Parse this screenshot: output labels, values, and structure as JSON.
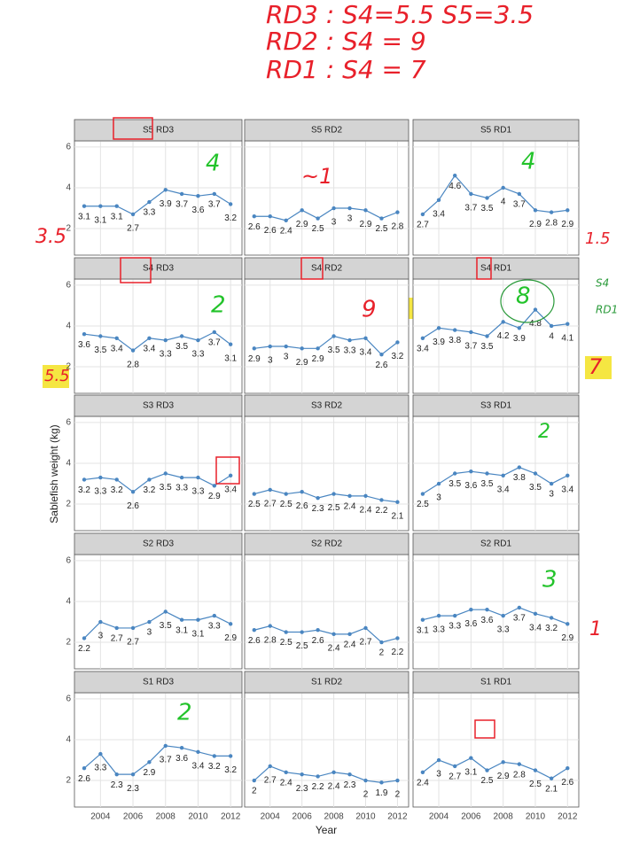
{
  "chart_data": [
    {
      "type": "line",
      "title": "S5 RD3",
      "x": [
        2003,
        2004,
        2005,
        2006,
        2007,
        2008,
        2009,
        2010,
        2011,
        2012
      ],
      "values": [
        3.1,
        3.1,
        3.1,
        2.7,
        3.3,
        3.9,
        3.7,
        3.6,
        3.7,
        3.2
      ],
      "color": "#4a86c1",
      "xlim": [
        2002.4,
        2012.7
      ],
      "ylim": [
        0.7,
        6.3
      ],
      "xticks": [
        2004,
        2006,
        2008,
        2010,
        2012
      ],
      "yticks": [
        2,
        4,
        6
      ]
    },
    {
      "type": "line",
      "title": "S5 RD2",
      "x": [
        2003,
        2004,
        2005,
        2006,
        2007,
        2008,
        2009,
        2010,
        2011,
        2012
      ],
      "values": [
        2.6,
        2.6,
        2.4,
        2.9,
        2.5,
        3,
        3,
        2.9,
        2.5,
        2.8
      ],
      "color": "#4a86c1",
      "xlim": [
        2002.4,
        2012.7
      ],
      "ylim": [
        0.7,
        6.3
      ],
      "xticks": [
        2004,
        2006,
        2008,
        2010,
        2012
      ],
      "yticks": [
        2,
        4,
        6
      ]
    },
    {
      "type": "line",
      "title": "S5 RD1",
      "x": [
        2003,
        2004,
        2005,
        2006,
        2007,
        2008,
        2009,
        2010,
        2011,
        2012
      ],
      "values": [
        2.7,
        3.4,
        4.6,
        3.7,
        3.5,
        4,
        3.7,
        2.9,
        2.8,
        2.9
      ],
      "color": "#4a86c1",
      "xlim": [
        2002.4,
        2012.7
      ],
      "ylim": [
        0.7,
        6.3
      ],
      "xticks": [
        2004,
        2006,
        2008,
        2010,
        2012
      ],
      "yticks": [
        2,
        4,
        6
      ]
    },
    {
      "type": "line",
      "title": "S4 RD3",
      "x": [
        2003,
        2004,
        2005,
        2006,
        2007,
        2008,
        2009,
        2010,
        2011,
        2012
      ],
      "values": [
        3.6,
        3.5,
        3.4,
        2.8,
        3.4,
        3.3,
        3.5,
        3.3,
        3.7,
        3.1
      ],
      "color": "#4a86c1",
      "xlim": [
        2002.4,
        2012.7
      ],
      "ylim": [
        0.7,
        6.3
      ],
      "xticks": [
        2004,
        2006,
        2008,
        2010,
        2012
      ],
      "yticks": [
        2,
        4,
        6
      ]
    },
    {
      "type": "line",
      "title": "S4 RD2",
      "x": [
        2003,
        2004,
        2005,
        2006,
        2007,
        2008,
        2009,
        2010,
        2011,
        2012
      ],
      "values": [
        2.9,
        3,
        3,
        2.9,
        2.9,
        3.5,
        3.3,
        3.4,
        2.6,
        3.2
      ],
      "color": "#4a86c1",
      "xlim": [
        2002.4,
        2012.7
      ],
      "ylim": [
        0.7,
        6.3
      ],
      "xticks": [
        2004,
        2006,
        2008,
        2010,
        2012
      ],
      "yticks": [
        2,
        4,
        6
      ]
    },
    {
      "type": "line",
      "title": "S4 RD1",
      "x": [
        2003,
        2004,
        2005,
        2006,
        2007,
        2008,
        2009,
        2010,
        2011,
        2012
      ],
      "values": [
        3.4,
        3.9,
        3.8,
        3.7,
        3.5,
        4.2,
        3.9,
        4.8,
        4,
        4.1
      ],
      "color": "#4a86c1",
      "xlim": [
        2002.4,
        2012.7
      ],
      "ylim": [
        0.7,
        6.3
      ],
      "xticks": [
        2004,
        2006,
        2008,
        2010,
        2012
      ],
      "yticks": [
        2,
        4,
        6
      ]
    },
    {
      "type": "line",
      "title": "S3 RD3",
      "x": [
        2003,
        2004,
        2005,
        2006,
        2007,
        2008,
        2009,
        2010,
        2011,
        2012
      ],
      "values": [
        3.2,
        3.3,
        3.2,
        2.6,
        3.2,
        3.5,
        3.3,
        3.3,
        2.9,
        3.4
      ],
      "color": "#4a86c1",
      "xlim": [
        2002.4,
        2012.7
      ],
      "ylim": [
        0.7,
        6.3
      ],
      "xticks": [
        2004,
        2006,
        2008,
        2010,
        2012
      ],
      "yticks": [
        2,
        4,
        6
      ]
    },
    {
      "type": "line",
      "title": "S3 RD2",
      "x": [
        2003,
        2004,
        2005,
        2006,
        2007,
        2008,
        2009,
        2010,
        2011,
        2012
      ],
      "values": [
        2.5,
        2.7,
        2.5,
        2.6,
        2.3,
        2.5,
        2.4,
        2.4,
        2.2,
        2.1
      ],
      "color": "#4a86c1",
      "xlim": [
        2002.4,
        2012.7
      ],
      "ylim": [
        0.7,
        6.3
      ],
      "xticks": [
        2004,
        2006,
        2008,
        2010,
        2012
      ],
      "yticks": [
        2,
        4,
        6
      ]
    },
    {
      "type": "line",
      "title": "S3 RD1",
      "x": [
        2003,
        2004,
        2005,
        2006,
        2007,
        2008,
        2009,
        2010,
        2011,
        2012
      ],
      "values": [
        2.5,
        3,
        3.5,
        3.6,
        3.5,
        3.4,
        3.8,
        3.5,
        3,
        3.4
      ],
      "color": "#4a86c1",
      "xlim": [
        2002.4,
        2012.7
      ],
      "ylim": [
        0.7,
        6.3
      ],
      "xticks": [
        2004,
        2006,
        2008,
        2010,
        2012
      ],
      "yticks": [
        2,
        4,
        6
      ]
    },
    {
      "type": "line",
      "title": "S2 RD3",
      "x": [
        2003,
        2004,
        2005,
        2006,
        2007,
        2008,
        2009,
        2010,
        2011,
        2012
      ],
      "values": [
        2.2,
        3,
        2.7,
        2.7,
        3,
        3.5,
        3.1,
        3.1,
        3.3,
        2.9
      ],
      "color": "#4a86c1",
      "xlim": [
        2002.4,
        2012.7
      ],
      "ylim": [
        0.7,
        6.3
      ],
      "xticks": [
        2004,
        2006,
        2008,
        2010,
        2012
      ],
      "yticks": [
        2,
        4,
        6
      ]
    },
    {
      "type": "line",
      "title": "S2 RD2",
      "x": [
        2003,
        2004,
        2005,
        2006,
        2007,
        2008,
        2009,
        2010,
        2011,
        2012
      ],
      "values": [
        2.6,
        2.8,
        2.5,
        2.5,
        2.6,
        2.4,
        2.4,
        2.7,
        2,
        2.2
      ],
      "color": "#4a86c1",
      "xlim": [
        2002.4,
        2012.7
      ],
      "ylim": [
        0.7,
        6.3
      ],
      "xticks": [
        2004,
        2006,
        2008,
        2010,
        2012
      ],
      "yticks": [
        2,
        4,
        6
      ]
    },
    {
      "type": "line",
      "title": "S2 RD1",
      "x": [
        2003,
        2004,
        2005,
        2006,
        2007,
        2008,
        2009,
        2010,
        2011,
        2012
      ],
      "values": [
        3.1,
        3.3,
        3.3,
        3.6,
        3.6,
        3.3,
        3.7,
        3.4,
        3.2,
        2.9
      ],
      "color": "#4a86c1",
      "xlim": [
        2002.4,
        2012.7
      ],
      "ylim": [
        0.7,
        6.3
      ],
      "xticks": [
        2004,
        2006,
        2008,
        2010,
        2012
      ],
      "yticks": [
        2,
        4,
        6
      ]
    },
    {
      "type": "line",
      "title": "S1 RD3",
      "x": [
        2003,
        2004,
        2005,
        2006,
        2007,
        2008,
        2009,
        2010,
        2011,
        2012
      ],
      "values": [
        2.6,
        3.3,
        2.3,
        2.3,
        2.9,
        3.7,
        3.6,
        3.4,
        3.2,
        3.2
      ],
      "color": "#4a86c1",
      "xlim": [
        2002.4,
        2012.7
      ],
      "ylim": [
        0.7,
        6.3
      ],
      "xticks": [
        2004,
        2006,
        2008,
        2010,
        2012
      ],
      "yticks": [
        2,
        4,
        6
      ]
    },
    {
      "type": "line",
      "title": "S1 RD2",
      "x": [
        2003,
        2004,
        2005,
        2006,
        2007,
        2008,
        2009,
        2010,
        2011,
        2012
      ],
      "values": [
        2,
        2.7,
        2.4,
        2.3,
        2.2,
        2.4,
        2.3,
        2,
        1.9,
        2
      ],
      "color": "#4a86c1",
      "xlim": [
        2002.4,
        2012.7
      ],
      "ylim": [
        0.7,
        6.3
      ],
      "xticks": [
        2004,
        2006,
        2008,
        2010,
        2012
      ],
      "yticks": [
        2,
        4,
        6
      ]
    },
    {
      "type": "line",
      "title": "S1 RD1",
      "x": [
        2003,
        2004,
        2005,
        2006,
        2007,
        2008,
        2009,
        2010,
        2011,
        2012
      ],
      "values": [
        2.4,
        3,
        2.7,
        3.1,
        2.5,
        2.9,
        2.8,
        2.5,
        2.1,
        2.6
      ],
      "color": "#4a86c1",
      "xlim": [
        2002.4,
        2012.7
      ],
      "ylim": [
        0.7,
        6.3
      ],
      "xticks": [
        2004,
        2006,
        2008,
        2010,
        2012
      ],
      "yticks": [
        2,
        4,
        6
      ]
    }
  ],
  "axis_labels": {
    "x": "Year",
    "y": "Sablefish weight (kg)"
  },
  "annotations": [
    {
      "text": "RD3 : S4=5.5 S5=3.5",
      "color": "#e8202a"
    },
    {
      "text": "RD2 : S4 = 9",
      "color": "#e8202a"
    },
    {
      "text": "RD1 : S4 = 7",
      "color": "#e8202a"
    },
    {
      "text": "4",
      "color": "#22c32a"
    },
    {
      "text": "~1",
      "color": "#e8202a"
    },
    {
      "text": "4",
      "color": "#22c32a"
    },
    {
      "text": "3.5",
      "color": "#e8202a"
    },
    {
      "text": "1.5",
      "color": "#e8202a"
    },
    {
      "text": "2",
      "color": "#22c32a"
    },
    {
      "text": "9",
      "color": "#e8202a"
    },
    {
      "text": "8",
      "color": "#22c32a"
    },
    {
      "text": "S4",
      "color": "#2a9a3a"
    },
    {
      "text": "RD1",
      "color": "#2a9a3a"
    },
    {
      "text": "5.5",
      "color": "#e8202a"
    },
    {
      "text": "7",
      "color": "#e8202a"
    },
    {
      "text": "2",
      "color": "#22c32a"
    },
    {
      "text": "3",
      "color": "#22c32a"
    },
    {
      "text": "1",
      "color": "#e8202a"
    },
    {
      "text": "2",
      "color": "#22c32a"
    }
  ]
}
